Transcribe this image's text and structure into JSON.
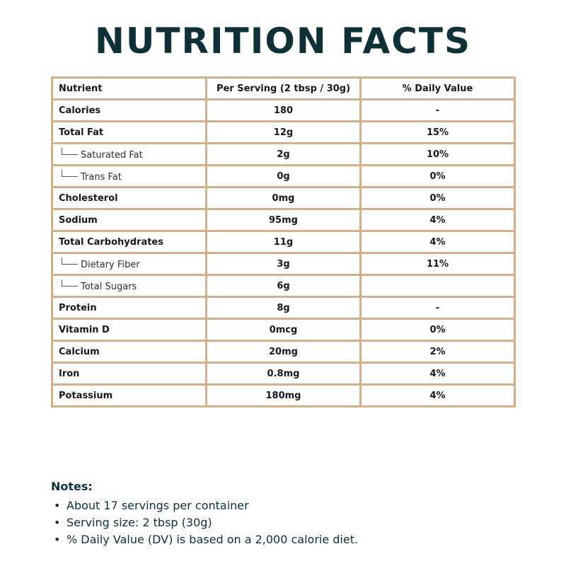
{
  "title": "NUTRITION FACTS",
  "table": {
    "headers": [
      "Nutrient",
      "Per Serving (2 tbsp / 30g)",
      "% Daily Value"
    ],
    "rows": [
      {
        "nutrient": "Calories",
        "amount": "180",
        "dv": "-",
        "sub": false
      },
      {
        "nutrient": "Total Fat",
        "amount": "12g",
        "dv": "15%",
        "sub": false
      },
      {
        "nutrient": "Saturated Fat",
        "amount": "2g",
        "dv": "10%",
        "sub": true
      },
      {
        "nutrient": "Trans Fat",
        "amount": "0g",
        "dv": "0%",
        "sub": true
      },
      {
        "nutrient": "Cholesterol",
        "amount": "0mg",
        "dv": "0%",
        "sub": false
      },
      {
        "nutrient": "Sodium",
        "amount": "95mg",
        "dv": "4%",
        "sub": false
      },
      {
        "nutrient": "Total Carbohydrates",
        "amount": "11g",
        "dv": "4%",
        "sub": false
      },
      {
        "nutrient": "Dietary Fiber",
        "amount": "3g",
        "dv": "11%",
        "sub": true
      },
      {
        "nutrient": "Total Sugars",
        "amount": "6g",
        "dv": "",
        "sub": true
      },
      {
        "nutrient": "Protein",
        "amount": "8g",
        "dv": "-",
        "sub": false
      },
      {
        "nutrient": "Vitamin D",
        "amount": "0mcg",
        "dv": "0%",
        "sub": false
      },
      {
        "nutrient": "Calcium",
        "amount": "20mg",
        "dv": "2%",
        "sub": false
      },
      {
        "nutrient": "Iron",
        "amount": "0.8mg",
        "dv": "4%",
        "sub": false
      },
      {
        "nutrient": "Potassium",
        "amount": "180mg",
        "dv": "4%",
        "sub": false
      }
    ]
  },
  "notes": {
    "title": "Notes:",
    "items": [
      "About 17 servings per container",
      "Serving size: 2 tbsp (30g)",
      "% Daily Value (DV) is based on a 2,000 calorie diet."
    ]
  },
  "colors": {
    "title": "#0f3036",
    "border": "#d5ae8b",
    "text": "#16191c"
  }
}
